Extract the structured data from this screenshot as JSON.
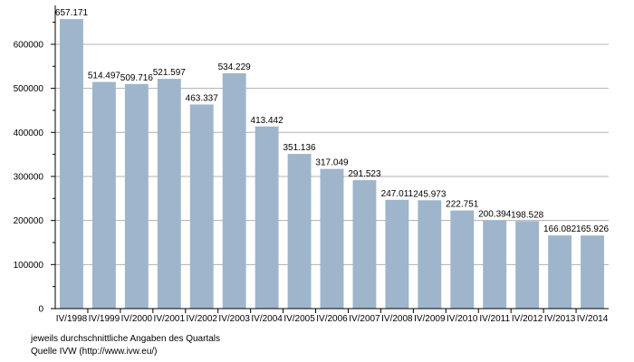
{
  "chart_data": {
    "type": "bar",
    "categories": [
      "IV/1998",
      "IV/1999",
      "IV/2000",
      "IV/2001",
      "IV/2002",
      "IV/2003",
      "IV/2004",
      "IV/2005",
      "IV/2006",
      "IV/2007",
      "IV/2008",
      "IV/2009",
      "IV/2010",
      "IV/2011",
      "IV/2012",
      "IV/2013",
      "IV/2014"
    ],
    "values": [
      657171,
      514497,
      509716,
      521597,
      463337,
      534229,
      413442,
      351136,
      317049,
      291523,
      247011,
      245973,
      222751,
      200394,
      198528,
      166082,
      165926
    ],
    "value_labels": [
      "657.171",
      "514.497",
      "509.716",
      "521.597",
      "463.337",
      "534.229",
      "413.442",
      "351.136",
      "317.049",
      "291.523",
      "247.011",
      "245.973",
      "222.751",
      "200.394",
      "198.528",
      "166.082",
      "165.926"
    ],
    "y_ticks": [
      "0",
      "100000",
      "200000",
      "300000",
      "400000",
      "500000",
      "600000"
    ],
    "ylim": [
      0,
      680000
    ],
    "grid": true,
    "bar_color": "#9eb5cb",
    "grid_color": "#b0b0b0",
    "title": "",
    "xlabel": "",
    "ylabel": ""
  },
  "footnotes": {
    "note": "jeweils durchschnittliche Angaben des Quartals",
    "source": "Quelle IVW (http://www.ivw.eu/)"
  }
}
